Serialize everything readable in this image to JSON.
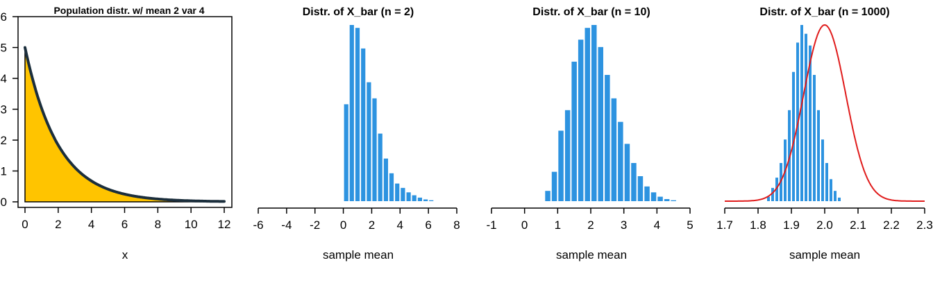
{
  "colors": {
    "bar": "#2d93e0",
    "fill": "#ffc400",
    "curve": "#1b2e3c",
    "normal": "#e01b1b",
    "axis": "#000000"
  },
  "chart_data": [
    {
      "type": "area",
      "title": "Population distr. w/ mean 2 var 4",
      "xlabel": "x",
      "ylabel": "",
      "xlim": [
        0,
        12
      ],
      "ylim": [
        0,
        6
      ],
      "xticks": [
        "0",
        "2",
        "4",
        "6",
        "8",
        "10",
        "12"
      ],
      "yticks": [
        "0",
        "1",
        "2",
        "3",
        "4",
        "5",
        "6"
      ],
      "curve": "5*exp(-x/2)",
      "x": [
        0,
        0.5,
        1,
        1.5,
        2,
        2.5,
        3,
        3.5,
        4,
        5,
        6,
        7,
        8,
        9,
        10,
        11,
        12
      ],
      "y": [
        5.0,
        3.89,
        3.03,
        2.36,
        1.84,
        1.43,
        1.12,
        0.87,
        0.68,
        0.41,
        0.25,
        0.15,
        0.09,
        0.06,
        0.03,
        0.02,
        0.01
      ],
      "framed": true
    },
    {
      "type": "bar",
      "title": "Distr. of X_bar (n = 2)",
      "xlabel": "sample mean",
      "xlim": [
        -6,
        8
      ],
      "xticks": [
        "-6",
        "-4",
        "-2",
        "0",
        "2",
        "4",
        "6",
        "8"
      ],
      "bin_width": 0.4,
      "bin_start": 0,
      "values": [
        3.3,
        6.0,
        5.9,
        5.2,
        4.05,
        3.5,
        2.3,
        1.45,
        0.95,
        0.6,
        0.45,
        0.3,
        0.2,
        0.12,
        0.06,
        0.03
      ],
      "framed": false
    },
    {
      "type": "bar",
      "title": "Distr. of X_bar (n = 10)",
      "xlabel": "sample mean",
      "xlim": [
        -1,
        5
      ],
      "xticks": [
        "-1",
        "0",
        "1",
        "2",
        "3",
        "4",
        "5"
      ],
      "bin_width": 0.2,
      "bin_start": 0.6,
      "values": [
        0.35,
        1.0,
        2.4,
        3.1,
        4.75,
        5.5,
        5.9,
        6.0,
        5.25,
        4.3,
        3.5,
        2.7,
        1.95,
        1.3,
        0.85,
        0.5,
        0.3,
        0.15,
        0.07,
        0.03
      ],
      "framed": false
    },
    {
      "type": "bar",
      "title": "Distr. of X_bar (n = 1000)",
      "xlabel": "sample mean",
      "xlim": [
        1.7,
        2.3
      ],
      "xticks": [
        "1.7",
        "1.8",
        "1.9",
        "2.0",
        "2.1",
        "2.2",
        "2.3"
      ],
      "bin_width": 0.0125,
      "bin_start": 1.825,
      "values": [
        0.15,
        0.45,
        0.8,
        1.3,
        2.1,
        3.1,
        4.4,
        5.4,
        6.0,
        5.7,
        5.3,
        4.3,
        3.1,
        2.1,
        1.3,
        0.75,
        0.35,
        0.12
      ],
      "normal_curve": {
        "mean": 2.0,
        "sd": 0.0632
      },
      "framed": false
    }
  ]
}
